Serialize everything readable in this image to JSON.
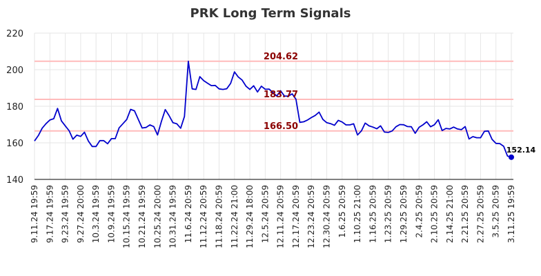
{
  "chart_data": {
    "type": "line",
    "title": "PRK Long Term Signals",
    "xlabel": "",
    "ylabel": "",
    "ylim": [
      140,
      220
    ],
    "yticks": [
      140,
      160,
      180,
      200,
      220
    ],
    "grid": true,
    "x_tick_labels": [
      "9.11.24 19:59",
      "9.17.24 19:59",
      "9.23.24 19:59",
      "9.27.24 20:00",
      "10.3.24 19:59",
      "10.9.24 19:59",
      "10.15.24 19:59",
      "10.21.24 19:59",
      "10.25.24 20:00",
      "10.31.24 19:59",
      "11.6.24 20:59",
      "11.12.24 20:59",
      "11.18.24 20:59",
      "11.22.24 21:00",
      "11.29.24 18:00",
      "12.5.24 20:59",
      "12.11.24 20:59",
      "12.17.24 20:59",
      "12.23.24 20:59",
      "12.30.24 20:59",
      "1.6.25 20:59",
      "1.10.25 21:00",
      "1.16.25 20:59",
      "1.23.25 20:59",
      "1.29.25 20:59",
      "2.4.25 20:59",
      "2.10.25 20:59",
      "2.14.25 21:00",
      "2.21.25 20:59",
      "2.27.25 20:59",
      "3.5.25 20:59",
      "3.11.25 19:59"
    ],
    "hlines": [
      {
        "value": 204.62,
        "label": "204.62",
        "line_color": "#ffbbbb",
        "label_color": "#8b0000"
      },
      {
        "value": 183.77,
        "label": "183.77",
        "line_color": "#ffbbbb",
        "label_color": "#8b0000"
      },
      {
        "value": 166.5,
        "label": "166.50",
        "line_color": "#ffbbbb",
        "label_color": "#8b0000"
      }
    ],
    "series": [
      {
        "color": "#0000cc",
        "values": [
          161,
          164,
          168,
          170.5,
          172.5,
          173.2,
          178.8,
          172,
          169.3,
          166.6,
          162,
          164.2,
          163.5,
          165.8,
          161,
          158,
          158,
          161.2,
          161.2,
          159.5,
          162.3,
          162.3,
          168.2,
          170.5,
          172.8,
          178.3,
          177.5,
          172.7,
          168.1,
          168.4,
          169.8,
          168.9,
          164.3,
          171.7,
          178.2,
          174.9,
          171,
          170.4,
          168,
          174.4,
          204.6,
          189.5,
          189.2,
          196.2,
          194,
          192.6,
          191.3,
          191.4,
          189.5,
          189.2,
          189.6,
          192.5,
          198.8,
          196,
          194.3,
          191,
          189.2,
          191.2,
          187.8,
          191,
          189.3,
          189.4,
          187.5,
          185.6,
          188.5,
          185.6,
          185.5,
          186.8,
          183.8,
          171.2,
          171.5,
          172.5,
          173.8,
          175,
          176.8,
          172.8,
          171,
          170.5,
          169.6,
          172.3,
          171.4,
          169.8,
          169.8,
          170.4,
          164.3,
          166.5,
          170.8,
          169.3,
          168.6,
          167.7,
          169.3,
          165.9,
          165.7,
          166.5,
          168.8,
          170,
          169.9,
          168.9,
          168.8,
          165.2,
          168.5,
          169.8,
          171.5,
          168.8,
          169.9,
          172.6,
          166.7,
          167.9,
          167.6,
          168.6,
          167.6,
          167.2,
          168.9,
          162.1,
          163.4,
          162.8,
          162.8,
          166.3,
          166.5,
          161.9,
          159.7,
          159.6,
          158.1,
          152.8,
          152.14
        ]
      }
    ],
    "last_value_label": "152.14"
  }
}
